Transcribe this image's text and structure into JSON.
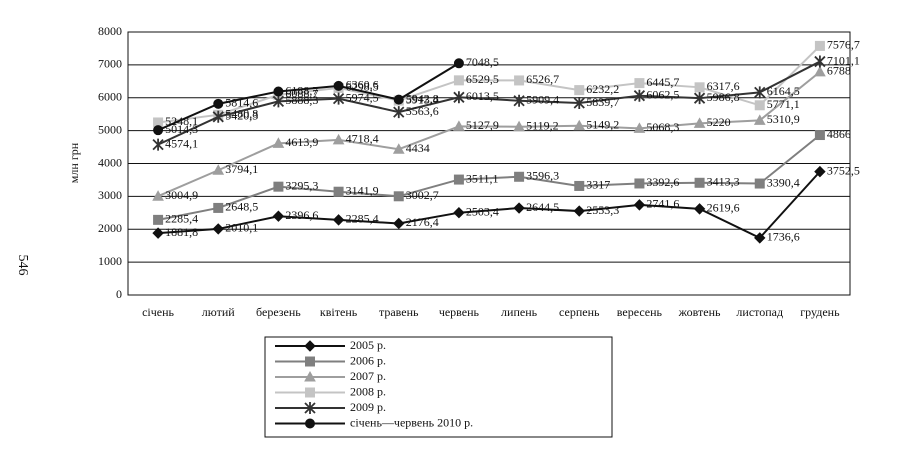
{
  "page_number": "546",
  "chart_data": {
    "type": "line",
    "y_label": "млн грн",
    "categories": [
      "січень",
      "лютий",
      "березень",
      "квітень",
      "травень",
      "червень",
      "липень",
      "серпень",
      "вересень",
      "жовтень",
      "листопад",
      "грудень"
    ],
    "ylim": [
      0,
      8000
    ],
    "yticks": [
      0,
      1000,
      2000,
      3000,
      4000,
      5000,
      6000,
      7000,
      8000
    ],
    "grid": true,
    "series": [
      {
        "name": "2005 р.",
        "color": "#111111",
        "marker": "diamond",
        "values": [
          1881.8,
          2010.1,
          2396.6,
          2285.4,
          2176.4,
          2503.4,
          2644.5,
          2553.3,
          2741.6,
          2619.6,
          1736.6,
          3752.5
        ],
        "value_labels": [
          "1881,8",
          "2010,1",
          "2396,6",
          "2285,4",
          "2176,4",
          "2503,4",
          "2644,5",
          "2553,3",
          "2741,6",
          "2619,6",
          "1736,6",
          "3752,5"
        ]
      },
      {
        "name": "2006 р.",
        "color": "#7f7f7f",
        "marker": "square",
        "values": [
          2285.4,
          2648.5,
          3295.3,
          3141.9,
          3002.7,
          3511.1,
          3596.3,
          3317,
          3392.6,
          3413.3,
          3390.4,
          4866
        ],
        "value_labels": [
          "2285,4",
          "2648,5",
          "3295,3",
          "3141,9",
          "3002,7",
          "3511,1",
          "3596,3",
          "3317",
          "3392,6",
          "3413,3",
          "3390,4",
          "4866"
        ]
      },
      {
        "name": "2007 р.",
        "color": "#9e9e9e",
        "marker": "triangle",
        "values": [
          3004.9,
          3794.1,
          4613.9,
          4718.4,
          4434,
          5127.9,
          5119.2,
          5149.2,
          5068.3,
          5220,
          5310.9,
          6788
        ],
        "value_labels": [
          "3004,9",
          "3794,1",
          "4613,9",
          "4718,4",
          "4434",
          "5127,9",
          "5119,2",
          "5149,2",
          "5068,3",
          "5220",
          "5310,9",
          "6788"
        ]
      },
      {
        "name": "2008 р.",
        "color": "#c4c4c4",
        "marker": "square",
        "values": [
          5248.1,
          5480.8,
          6088.7,
          6298.5,
          5913.4,
          6529.5,
          6526.7,
          6232.2,
          6445.7,
          6317.6,
          5771.1,
          7576.7
        ],
        "value_labels": [
          "5248,1",
          "5480,8",
          "6088,7",
          "6298,5",
          "5913,4",
          "6529,5",
          "6526,7",
          "6232,2",
          "6445,7",
          "6317,6",
          "5771,1",
          "7576,7"
        ]
      },
      {
        "name": "2009 р.",
        "color": "#333333",
        "marker": "star",
        "values": [
          4574.1,
          5420.3,
          5888.3,
          5974.5,
          5563.6,
          6013.5,
          5909.4,
          5839.7,
          6062.5,
          5986.8,
          6164.5,
          7101.1
        ],
        "value_labels": [
          "4574,1",
          "5420,3",
          "5888,3",
          "5974,5",
          "5563,6",
          "6013,5",
          "5909,4",
          "5839,7",
          "6062,5",
          "5986,8",
          "6164,5",
          "7101,1"
        ]
      },
      {
        "name": "січень—червень 2010 р.",
        "color": "#111111",
        "marker": "circle",
        "values": [
          5014.3,
          5814.6,
          6188.7,
          6360.6,
          5942.8,
          7048.5,
          null,
          null,
          null,
          null,
          null,
          null
        ],
        "value_labels": [
          "5014,3",
          "5814,6",
          "6188,7",
          "6360,6",
          "5942,8",
          "7048,5",
          null,
          null,
          null,
          null,
          null,
          null
        ]
      }
    ]
  }
}
